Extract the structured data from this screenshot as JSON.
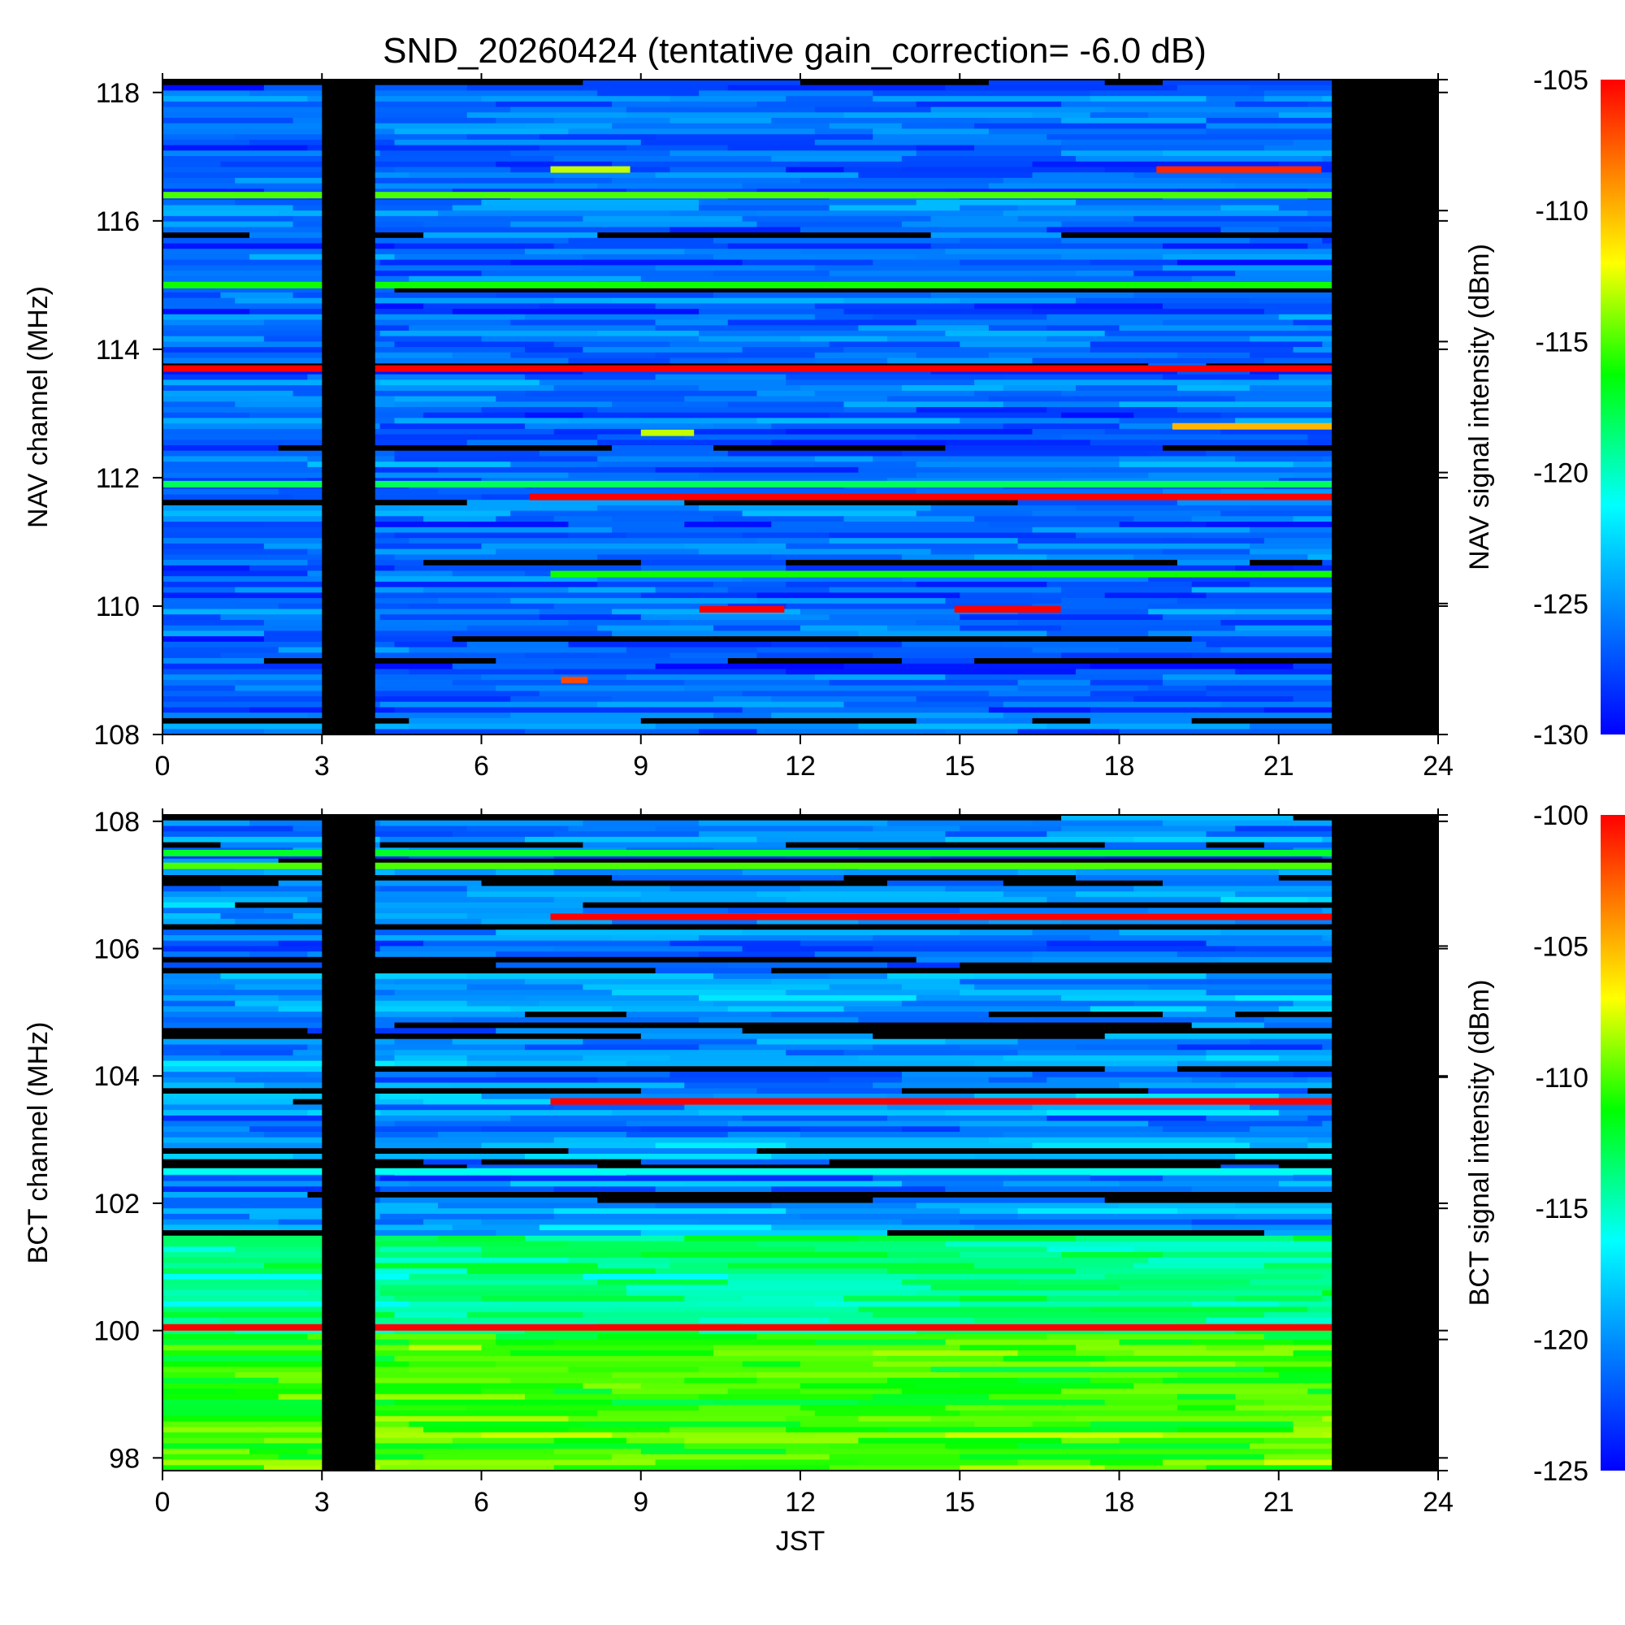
{
  "chart_data": {
    "type": "heatmap",
    "title": "SND_20260424 (tentative gain_correction= -6.0 dB)",
    "panels": [
      {
        "name": "nav",
        "ylabel": "NAV channel (MHz)",
        "xlabel": "",
        "colorbar_label": "NAV signal intensity (dBm)",
        "xlim": [
          0,
          24
        ],
        "ylim": [
          108,
          118.2
        ],
        "x_ticks": [
          "0",
          "3",
          "6",
          "9",
          "12",
          "15",
          "18",
          "21",
          "24"
        ],
        "y_ticks": [
          "108",
          "110",
          "112",
          "114",
          "116",
          "118"
        ],
        "colorbar_range": [
          -130,
          -105
        ],
        "colorbar_ticks": [
          "-105",
          "-110",
          "-115",
          "-120",
          "-125",
          "-130"
        ],
        "data_gaps_hours": [
          [
            3,
            4
          ],
          [
            22,
            24
          ]
        ],
        "background_level_dbm": -127,
        "strong_channels": [
          {
            "freq_mhz": 113.7,
            "start_hour": 0,
            "end_hour": 22,
            "level_dbm": -105
          },
          {
            "freq_mhz": 116.4,
            "start_hour": 0,
            "end_hour": 22,
            "level_dbm": -115
          },
          {
            "freq_mhz": 115.0,
            "start_hour": 0,
            "end_hour": 22,
            "level_dbm": -116
          },
          {
            "freq_mhz": 111.7,
            "start_hour": 6.9,
            "end_hour": 22,
            "level_dbm": -105
          },
          {
            "freq_mhz": 111.9,
            "start_hour": 0,
            "end_hour": 22,
            "level_dbm": -118
          },
          {
            "freq_mhz": 116.8,
            "start_hour": 18.7,
            "end_hour": 21.8,
            "level_dbm": -106
          },
          {
            "freq_mhz": 116.8,
            "start_hour": 7.3,
            "end_hour": 8.8,
            "level_dbm": -113
          },
          {
            "freq_mhz": 112.8,
            "start_hour": 19.0,
            "end_hour": 22,
            "level_dbm": -110
          },
          {
            "freq_mhz": 112.7,
            "start_hour": 9.0,
            "end_hour": 10.0,
            "level_dbm": -113
          },
          {
            "freq_mhz": 110.5,
            "start_hour": 7.3,
            "end_hour": 22,
            "level_dbm": -116
          },
          {
            "freq_mhz": 109.95,
            "start_hour": 10.1,
            "end_hour": 11.7,
            "level_dbm": -105
          },
          {
            "freq_mhz": 109.95,
            "start_hour": 14.9,
            "end_hour": 16.9,
            "level_dbm": -105
          },
          {
            "freq_mhz": 108.85,
            "start_hour": 7.5,
            "end_hour": 8.0,
            "level_dbm": -107
          }
        ]
      },
      {
        "name": "bct",
        "ylabel": "BCT channel (MHz)",
        "xlabel": "JST",
        "colorbar_label": "BCT signal intensity (dBm)",
        "xlim": [
          0,
          24
        ],
        "ylim": [
          97.8,
          108.1
        ],
        "x_ticks": [
          "0",
          "3",
          "6",
          "9",
          "12",
          "15",
          "18",
          "21",
          "24"
        ],
        "y_ticks": [
          "98",
          "100",
          "102",
          "104",
          "106",
          "108"
        ],
        "colorbar_range": [
          -125,
          -100
        ],
        "colorbar_ticks": [
          "-100",
          "-105",
          "-110",
          "-115",
          "-120",
          "-125"
        ],
        "data_gaps_hours": [
          [
            3,
            4
          ],
          [
            22,
            24
          ]
        ],
        "strong_channels": [
          {
            "freq_mhz": 100.05,
            "start_hour": 0,
            "end_hour": 22,
            "level_dbm": -100
          },
          {
            "freq_mhz": 103.6,
            "start_hour": 7.3,
            "end_hour": 22,
            "level_dbm": -100
          },
          {
            "freq_mhz": 106.5,
            "start_hour": 7.3,
            "end_hour": 22,
            "level_dbm": -100
          },
          {
            "freq_mhz": 107.5,
            "start_hour": 0,
            "end_hour": 22,
            "level_dbm": -112
          },
          {
            "freq_mhz": 107.3,
            "start_hour": 0,
            "end_hour": 22,
            "level_dbm": -110
          },
          {
            "freq_mhz": 102.5,
            "start_hour": 0,
            "end_hour": 22,
            "level_dbm": -116
          }
        ]
      }
    ]
  }
}
